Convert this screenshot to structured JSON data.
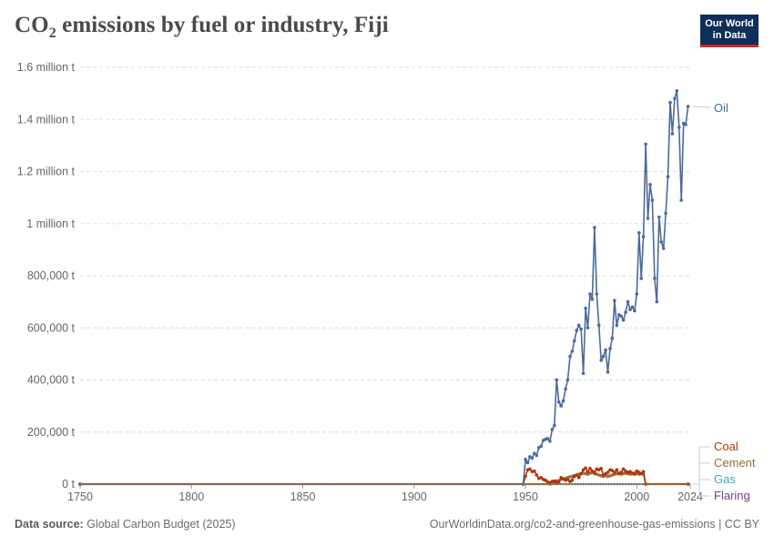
{
  "header": {
    "title_main": "CO",
    "title_sub": "2",
    "title_rest": " emissions by fuel or industry, Fiji",
    "logo_line1": "Our World",
    "logo_line2": "in Data"
  },
  "footer": {
    "source_label": "Data source:",
    "source_value": " Global Carbon Budget (2025)",
    "url": "OurWorldinData.org/co2-and-greenhouse-gas-emissions | CC BY"
  },
  "colors": {
    "oil": "#4c6a9c",
    "coal": "#b13507",
    "cement": "#996d39",
    "gas": "#38aaba",
    "flaring": "#6d3e91",
    "grid": "#dddddd",
    "text": "#666666"
  },
  "chart_data": {
    "type": "line",
    "xlim": [
      1750,
      2024
    ],
    "ylim": [
      0,
      1600000
    ],
    "y_ticks": [
      {
        "value": 0,
        "label": "0 t"
      },
      {
        "value": 200000,
        "label": "200,000 t"
      },
      {
        "value": 400000,
        "label": "400,000 t"
      },
      {
        "value": 600000,
        "label": "600,000 t"
      },
      {
        "value": 800000,
        "label": "800,000 t"
      },
      {
        "value": 1000000,
        "label": "1 million t"
      },
      {
        "value": 1200000,
        "label": "1.2 million t"
      },
      {
        "value": 1400000,
        "label": "1.4 million t"
      },
      {
        "value": 1600000,
        "label": "1.6 million t"
      }
    ],
    "x_ticks": [
      {
        "value": 1750,
        "label": "1750"
      },
      {
        "value": 1800,
        "label": "1800"
      },
      {
        "value": 1850,
        "label": "1850"
      },
      {
        "value": 1900,
        "label": "1900"
      },
      {
        "value": 1950,
        "label": "1950"
      },
      {
        "value": 2000,
        "label": "2000"
      },
      {
        "value": 2024,
        "label": "2024"
      }
    ],
    "series": [
      {
        "name": "Oil",
        "color_key": "oil",
        "points": [
          [
            1750,
            0
          ],
          [
            1949,
            0
          ],
          [
            1950,
            95000
          ],
          [
            1951,
            82000
          ],
          [
            1952,
            105000
          ],
          [
            1953,
            100000
          ],
          [
            1954,
            118000
          ],
          [
            1955,
            110000
          ],
          [
            1956,
            140000
          ],
          [
            1957,
            145000
          ],
          [
            1958,
            168000
          ],
          [
            1959,
            172000
          ],
          [
            1960,
            175000
          ],
          [
            1961,
            165000
          ],
          [
            1962,
            210000
          ],
          [
            1963,
            225000
          ],
          [
            1964,
            400000
          ],
          [
            1965,
            315000
          ],
          [
            1966,
            300000
          ],
          [
            1967,
            320000
          ],
          [
            1968,
            365000
          ],
          [
            1969,
            400000
          ],
          [
            1970,
            490000
          ],
          [
            1971,
            510000
          ],
          [
            1972,
            550000
          ],
          [
            1973,
            590000
          ],
          [
            1974,
            610000
          ],
          [
            1975,
            595000
          ],
          [
            1976,
            425000
          ],
          [
            1977,
            675000
          ],
          [
            1978,
            600000
          ],
          [
            1979,
            730000
          ],
          [
            1980,
            710000
          ],
          [
            1981,
            985000
          ],
          [
            1982,
            730000
          ],
          [
            1983,
            610000
          ],
          [
            1984,
            475000
          ],
          [
            1985,
            490000
          ],
          [
            1986,
            515000
          ],
          [
            1987,
            430000
          ],
          [
            1988,
            520000
          ],
          [
            1989,
            560000
          ],
          [
            1990,
            705000
          ],
          [
            1991,
            610000
          ],
          [
            1992,
            650000
          ],
          [
            1993,
            645000
          ],
          [
            1994,
            630000
          ],
          [
            1995,
            660000
          ],
          [
            1996,
            700000
          ],
          [
            1997,
            670000
          ],
          [
            1998,
            680000
          ],
          [
            1999,
            665000
          ],
          [
            2000,
            730000
          ],
          [
            2001,
            965000
          ],
          [
            2002,
            790000
          ],
          [
            2003,
            950000
          ],
          [
            2004,
            1305000
          ],
          [
            2005,
            1020000
          ],
          [
            2006,
            1150000
          ],
          [
            2007,
            1090000
          ],
          [
            2008,
            790000
          ],
          [
            2009,
            700000
          ],
          [
            2010,
            1025000
          ],
          [
            2011,
            930000
          ],
          [
            2012,
            905000
          ],
          [
            2013,
            1040000
          ],
          [
            2014,
            1180000
          ],
          [
            2015,
            1465000
          ],
          [
            2016,
            1345000
          ],
          [
            2017,
            1480000
          ],
          [
            2018,
            1510000
          ],
          [
            2019,
            1370000
          ],
          [
            2020,
            1090000
          ],
          [
            2021,
            1385000
          ],
          [
            2022,
            1380000
          ],
          [
            2023,
            1450000
          ]
        ]
      },
      {
        "name": "Coal",
        "color_key": "coal",
        "points": [
          [
            1750,
            0
          ],
          [
            1949,
            0
          ],
          [
            1950,
            30000
          ],
          [
            1951,
            55000
          ],
          [
            1952,
            58000
          ],
          [
            1953,
            48000
          ],
          [
            1954,
            50000
          ],
          [
            1955,
            35000
          ],
          [
            1956,
            22000
          ],
          [
            1957,
            25000
          ],
          [
            1958,
            18000
          ],
          [
            1959,
            15000
          ],
          [
            1960,
            8000
          ],
          [
            1961,
            5000
          ],
          [
            1962,
            10000
          ],
          [
            1963,
            12000
          ],
          [
            1964,
            5000
          ],
          [
            1965,
            8000
          ],
          [
            1966,
            25000
          ],
          [
            1967,
            20000
          ],
          [
            1968,
            15000
          ],
          [
            1969,
            18000
          ],
          [
            1970,
            10000
          ],
          [
            1971,
            15000
          ],
          [
            1972,
            30000
          ],
          [
            1973,
            35000
          ],
          [
            1974,
            25000
          ],
          [
            1975,
            40000
          ],
          [
            1976,
            55000
          ],
          [
            1977,
            62000
          ],
          [
            1978,
            48000
          ],
          [
            1979,
            60000
          ],
          [
            1980,
            50000
          ],
          [
            1981,
            45000
          ],
          [
            1982,
            58000
          ],
          [
            1983,
            55000
          ],
          [
            1984,
            60000
          ],
          [
            1985,
            35000
          ],
          [
            1986,
            40000
          ],
          [
            1987,
            45000
          ],
          [
            1988,
            55000
          ],
          [
            1989,
            52000
          ],
          [
            1990,
            45000
          ],
          [
            1991,
            55000
          ],
          [
            1992,
            40000
          ],
          [
            1993,
            45000
          ],
          [
            1994,
            58000
          ],
          [
            1995,
            50000
          ],
          [
            1996,
            45000
          ],
          [
            1997,
            48000
          ],
          [
            1998,
            42000
          ],
          [
            1999,
            38000
          ],
          [
            2000,
            50000
          ],
          [
            2001,
            45000
          ],
          [
            2002,
            40000
          ],
          [
            2003,
            48000
          ],
          [
            2004,
            0
          ],
          [
            2023,
            0
          ]
        ]
      },
      {
        "name": "Cement",
        "color_key": "cement",
        "points": [
          [
            1750,
            0
          ],
          [
            1961,
            0
          ],
          [
            1962,
            5000
          ],
          [
            1963,
            8000
          ],
          [
            1964,
            12000
          ],
          [
            1965,
            14000
          ],
          [
            1966,
            18000
          ],
          [
            1967,
            20000
          ],
          [
            1968,
            22000
          ],
          [
            1969,
            25000
          ],
          [
            1970,
            28000
          ],
          [
            1971,
            30000
          ],
          [
            1972,
            32000
          ],
          [
            1973,
            35000
          ],
          [
            1974,
            38000
          ],
          [
            1975,
            40000
          ],
          [
            1976,
            42000
          ],
          [
            1977,
            40000
          ],
          [
            1978,
            38000
          ],
          [
            1979,
            42000
          ],
          [
            1980,
            45000
          ],
          [
            1981,
            40000
          ],
          [
            1982,
            38000
          ],
          [
            1983,
            35000
          ],
          [
            1984,
            32000
          ],
          [
            1985,
            30000
          ],
          [
            1986,
            32000
          ],
          [
            1987,
            30000
          ],
          [
            1988,
            32000
          ],
          [
            1989,
            35000
          ],
          [
            1990,
            38000
          ],
          [
            1991,
            40000
          ],
          [
            1992,
            42000
          ],
          [
            1993,
            38000
          ],
          [
            1994,
            40000
          ],
          [
            1995,
            42000
          ],
          [
            1996,
            40000
          ],
          [
            1997,
            38000
          ],
          [
            1998,
            40000
          ],
          [
            1999,
            42000
          ],
          [
            2000,
            40000
          ],
          [
            2001,
            38000
          ],
          [
            2002,
            40000
          ],
          [
            2003,
            38000
          ],
          [
            2004,
            0
          ],
          [
            2023,
            0
          ]
        ]
      },
      {
        "name": "Gas",
        "color_key": "gas",
        "points": [
          [
            1750,
            0
          ],
          [
            2023,
            0
          ]
        ]
      },
      {
        "name": "Flaring",
        "color_key": "flaring",
        "points": [
          [
            1750,
            0
          ],
          [
            2023,
            0
          ]
        ]
      }
    ]
  }
}
